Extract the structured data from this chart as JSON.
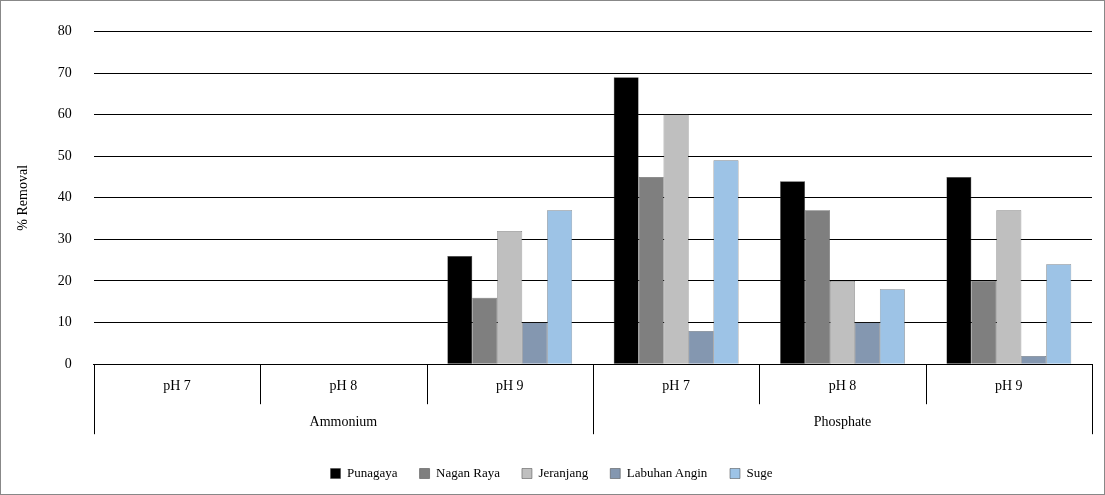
{
  "chart_data": {
    "type": "bar",
    "ylabel": "% Removal",
    "categories": [
      "pH 7",
      "pH 8",
      "pH 9",
      "pH 7",
      "pH 8",
      "pH 9"
    ],
    "annotations": [
      "Ammonium",
      "Phosphate"
    ],
    "series": [
      {
        "name": "Punagaya",
        "color": "#000000",
        "values": [
          0,
          0,
          26,
          69,
          44,
          45
        ]
      },
      {
        "name": "Nagan Raya",
        "color": "#7f7f7f",
        "values": [
          0,
          0,
          16,
          45,
          37,
          20
        ]
      },
      {
        "name": "Jeranjang",
        "color": "#bfbfbf",
        "values": [
          0,
          0,
          32,
          60,
          20,
          37
        ]
      },
      {
        "name": "Labuhan Angin",
        "color": "#8497b0",
        "values": [
          0,
          0,
          10,
          8,
          10,
          2
        ]
      },
      {
        "name": "Suge",
        "color": "#9dc3e6",
        "values": [
          0,
          0,
          37,
          49,
          18,
          24
        ]
      }
    ],
    "ylim": [
      0,
      80
    ],
    "yticks": [
      0,
      10,
      20,
      30,
      40,
      50,
      60,
      70,
      80
    ],
    "grid": "y",
    "legend": "bottom"
  }
}
